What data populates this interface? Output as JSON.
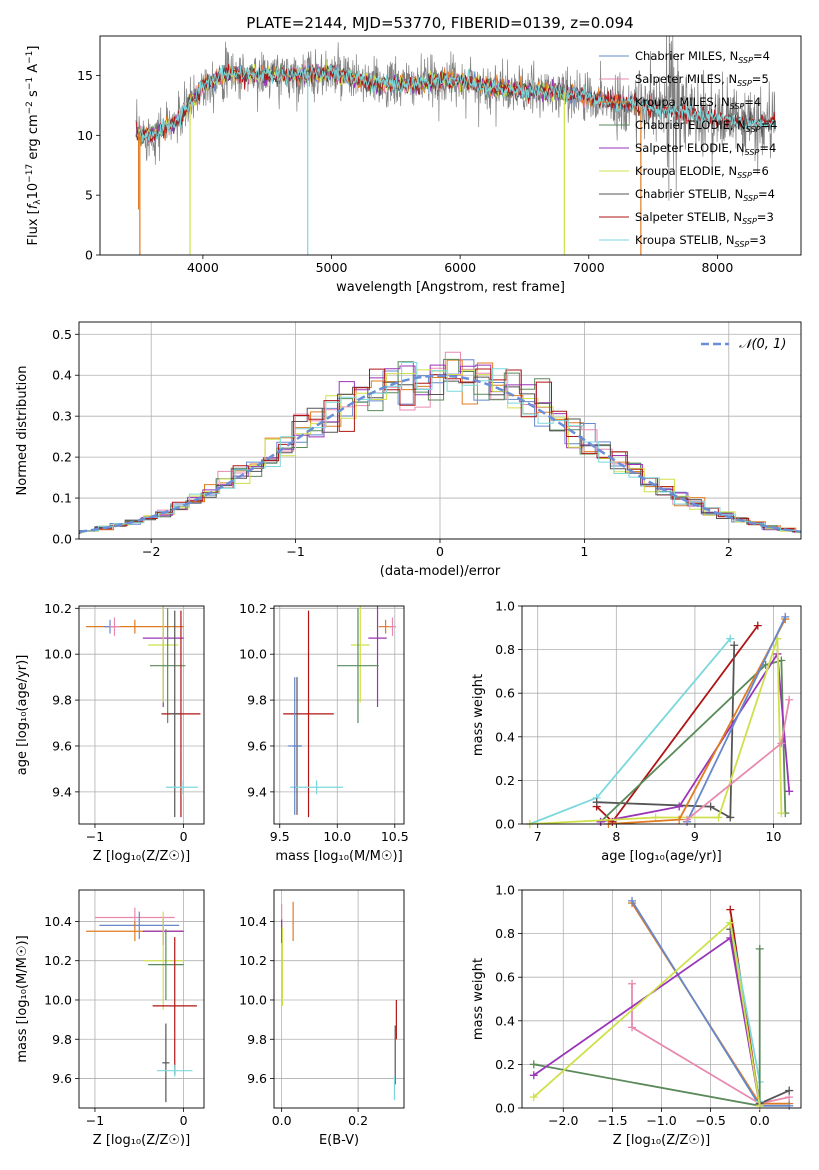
{
  "colors": {
    "chabrier_miles": "#6688cc",
    "salpeter_miles": "#e88ab0",
    "kroupa_miles": "#e07b22",
    "chabrier_elodie": "#5a8a5a",
    "salpeter_elodie": "#9a35b8",
    "kroupa_elodie": "#cfe04a",
    "chabrier_stelib": "#555555",
    "salpeter_stelib": "#b01414",
    "kroupa_stelib": "#7ad8dc",
    "data": "#808080",
    "grid": "#b0b0b0"
  },
  "chart_data": [
    {
      "id": "spectrum",
      "type": "line",
      "title": "PLATE=2144, MJD=53770, FIBERID=0139, z=0.094",
      "xlabel": "wavelength [Angstrom, rest frame]",
      "ylabel_parts": [
        "Flux [",
        "f",
        "λ",
        "10",
        "−17",
        " erg cm",
        "−2",
        " s",
        "−1",
        " A",
        "−1",
        "]"
      ],
      "xlim": [
        3200,
        8650
      ],
      "ylim": [
        0,
        18.3
      ],
      "xticks": [
        4000,
        5000,
        6000,
        7000,
        8000
      ],
      "yticks": [
        0,
        5,
        10,
        15
      ],
      "grid": false,
      "legend_position": "upper right",
      "series": [
        {
          "name": "Chabrier MILES",
          "nssp": "4",
          "key": "chabrier_miles"
        },
        {
          "name": "Salpeter MILES",
          "nssp": "5",
          "key": "salpeter_miles"
        },
        {
          "name": "Kroupa MILES",
          "nssp": "4",
          "key": "kroupa_miles"
        },
        {
          "name": "Chabrier ELODIE",
          "nssp": "4",
          "key": "chabrier_elodie"
        },
        {
          "name": "Salpeter ELODIE",
          "nssp": "4",
          "key": "salpeter_elodie"
        },
        {
          "name": "Kroupa ELODIE",
          "nssp": "6",
          "key": "kroupa_elodie"
        },
        {
          "name": "Chabrier STELIB",
          "nssp": "4",
          "key": "chabrier_stelib"
        },
        {
          "name": "Salpeter STELIB",
          "nssp": "3",
          "key": "salpeter_stelib"
        },
        {
          "name": "Kroupa STELIB",
          "nssp": "3",
          "key": "kroupa_stelib"
        }
      ],
      "continuum": [
        [
          3480,
          10.2
        ],
        [
          3600,
          10.0
        ],
        [
          3700,
          10.6
        ],
        [
          3800,
          11.2
        ],
        [
          3900,
          12.6
        ],
        [
          4000,
          14.2
        ],
        [
          4200,
          15.2
        ],
        [
          4500,
          15.0
        ],
        [
          4800,
          15.1
        ],
        [
          5000,
          15.2
        ],
        [
          5300,
          14.3
        ],
        [
          5600,
          14.2
        ],
        [
          5800,
          14.5
        ],
        [
          6000,
          14.6
        ],
        [
          6200,
          14.0
        ],
        [
          6500,
          13.7
        ],
        [
          6800,
          13.6
        ],
        [
          7000,
          13.2
        ],
        [
          7300,
          12.6
        ],
        [
          7500,
          12.3
        ],
        [
          7800,
          11.8
        ],
        [
          8000,
          11.4
        ],
        [
          8200,
          11.0
        ],
        [
          8450,
          11.0
        ]
      ]
    },
    {
      "id": "residuals",
      "type": "histogram",
      "xlabel": "(data-model)/error",
      "ylabel": "Normed distribution",
      "xlim": [
        -2.5,
        2.5
      ],
      "ylim": [
        0,
        0.53
      ],
      "xticks": [
        -2,
        -1,
        0,
        1,
        2
      ],
      "yticks": [
        0.0,
        0.1,
        0.2,
        0.3,
        0.4,
        0.5
      ],
      "grid": true,
      "legend": "𝒩(0, 1)",
      "legend_position": "upper right",
      "bin_width": 0.105
    },
    {
      "id": "age_vs_z",
      "type": "errorbar",
      "xlabel": "Z [log₁₀(Z/Z☉)]",
      "ylabel": "age  [log₁₀(age/yr)]",
      "xlim": [
        -1.18,
        0.23
      ],
      "ylim": [
        9.26,
        10.21
      ],
      "xticks": [
        -1,
        0
      ],
      "yticks": [
        9.4,
        9.6,
        9.8,
        10.0,
        10.2
      ],
      "grid": true,
      "points": [
        {
          "key": "kroupa_miles",
          "x": -0.55,
          "xerr": 0.55,
          "y": 10.12,
          "yerr": 0.03
        },
        {
          "key": "chabrier_miles",
          "x": -0.83,
          "xerr": 0.07,
          "y": 10.12,
          "yerr": 0.03
        },
        {
          "key": "salpeter_miles",
          "x": -0.78,
          "xerr": 0.06,
          "y": 10.12,
          "yerr": 0.04
        },
        {
          "key": "salpeter_elodie",
          "x": -0.23,
          "xerr": 0.23,
          "y": 10.07,
          "yerr": 0.3
        },
        {
          "key": "kroupa_elodie",
          "x": -0.23,
          "xerr": 0.17,
          "y": 10.04,
          "yerr": 0.25
        },
        {
          "key": "chabrier_elodie",
          "x": -0.18,
          "xerr": 0.2,
          "y": 9.95,
          "yerr": 0.25
        },
        {
          "key": "salpeter_stelib",
          "x": -0.03,
          "xerr": 0.22,
          "y": 9.74,
          "yerr": 0.45
        },
        {
          "key": "chabrier_stelib",
          "x": -0.1,
          "xerr": 0.05,
          "y": 9.74,
          "yerr": 0.45
        },
        {
          "key": "kroupa_stelib",
          "x": -0.02,
          "xerr": 0.18,
          "y": 9.42,
          "yerr": 0.03
        }
      ]
    },
    {
      "id": "age_vs_mass",
      "type": "errorbar",
      "xlabel": "mass [log₁₀(M/M☉)]",
      "xlim": [
        9.45,
        10.58
      ],
      "ylim": [
        9.26,
        10.21
      ],
      "xticks": [
        9.5,
        10.0,
        10.5
      ],
      "yticks": [
        9.4,
        9.6,
        9.8,
        10.0,
        10.2
      ],
      "grid": true,
      "points": [
        {
          "key": "kroupa_miles",
          "x": 10.42,
          "xerr": 0.06,
          "y": 10.12,
          "yerr": 0.03
        },
        {
          "key": "salpeter_miles",
          "x": 10.48,
          "xerr": 0.03,
          "y": 10.12,
          "yerr": 0.04
        },
        {
          "key": "salpeter_elodie",
          "x": 10.35,
          "xerr": 0.08,
          "y": 10.07,
          "yerr": 0.3
        },
        {
          "key": "kroupa_elodie",
          "x": 10.2,
          "xerr": 0.08,
          "y": 10.04,
          "yerr": 0.25
        },
        {
          "key": "chabrier_elodie",
          "x": 10.18,
          "xerr": 0.18,
          "y": 9.95,
          "yerr": 0.25
        },
        {
          "key": "salpeter_stelib",
          "x": 9.75,
          "xerr": 0.22,
          "y": 9.74,
          "yerr": 0.45
        },
        {
          "key": "chabrier_stelib",
          "x": 9.65,
          "xerr": 0.04,
          "y": 9.6,
          "yerr": 0.3
        },
        {
          "key": "kroupa_stelib",
          "x": 9.82,
          "xerr": 0.23,
          "y": 9.42,
          "yerr": 0.03
        },
        {
          "key": "chabrier_miles",
          "x": 9.63,
          "xerr": 0.06,
          "y": 9.6,
          "yerr": 0.3
        }
      ]
    },
    {
      "id": "weight_vs_age",
      "type": "line",
      "xlabel": "age  [log₁₀(age/yr)]",
      "ylabel": "mass weight",
      "xlim": [
        6.8,
        10.35
      ],
      "ylim": [
        0,
        1.0
      ],
      "xticks": [
        7,
        8,
        9,
        10
      ],
      "yticks": [
        0.0,
        0.2,
        0.4,
        0.6,
        0.8,
        1.0
      ],
      "grid": true,
      "series": [
        {
          "key": "salpeter_stelib",
          "x": [
            7.75,
            7.95,
            9.8
          ],
          "y": [
            0.08,
            0.01,
            0.91
          ]
        },
        {
          "key": "kroupa_stelib",
          "x": [
            6.9,
            7.75,
            9.45
          ],
          "y": [
            0.0,
            0.12,
            0.85
          ]
        },
        {
          "key": "chabrier_stelib",
          "x": [
            7.75,
            9.2,
            9.45,
            9.5
          ],
          "y": [
            0.1,
            0.08,
            0.03,
            0.82
          ]
        },
        {
          "key": "chabrier_elodie",
          "x": [
            7.8,
            9.9,
            10.1,
            10.15
          ],
          "y": [
            0.01,
            0.73,
            0.75,
            0.05
          ]
        },
        {
          "key": "salpeter_elodie",
          "x": [
            7.8,
            8.8,
            10.05,
            10.2
          ],
          "y": [
            0.01,
            0.08,
            0.78,
            0.15
          ]
        },
        {
          "key": "kroupa_elodie",
          "x": [
            6.9,
            8.5,
            9.3,
            10.05,
            10.1
          ],
          "y": [
            0.0,
            0.03,
            0.03,
            0.85,
            0.05
          ]
        },
        {
          "key": "kroupa_miles",
          "x": [
            7.9,
            8.8,
            10.15
          ],
          "y": [
            0.0,
            0.02,
            0.94
          ]
        },
        {
          "key": "chabrier_miles",
          "x": [
            8.9,
            10.15
          ],
          "y": [
            0.01,
            0.95
          ]
        },
        {
          "key": "salpeter_miles",
          "x": [
            8.9,
            10.1,
            10.2
          ],
          "y": [
            0.02,
            0.37,
            0.57
          ]
        }
      ]
    },
    {
      "id": "mass_vs_z",
      "type": "errorbar",
      "xlabel": "Z [log₁₀(Z/Z☉)]",
      "ylabel": "mass [log₁₀(M/M☉)]",
      "xlim": [
        -1.18,
        0.23
      ],
      "ylim": [
        9.45,
        10.56
      ],
      "xticks": [
        -1,
        0
      ],
      "yticks": [
        9.6,
        9.8,
        10.0,
        10.2,
        10.4
      ],
      "grid": true,
      "points": [
        {
          "key": "salpeter_miles",
          "x": -0.55,
          "xerr": 0.45,
          "y": 10.42,
          "yerr": 0.05
        },
        {
          "key": "chabrier_miles",
          "x": -0.5,
          "xerr": 0.45,
          "y": 10.38,
          "yerr": 0.07
        },
        {
          "key": "kroupa_miles",
          "x": -0.55,
          "xerr": 0.55,
          "y": 10.35,
          "yerr": 0.05
        },
        {
          "key": "salpeter_elodie",
          "x": -0.23,
          "xerr": 0.23,
          "y": 10.35,
          "yerr": 0.07
        },
        {
          "key": "kroupa_elodie",
          "x": -0.23,
          "xerr": 0.23,
          "y": 10.2,
          "yerr": 0.25
        },
        {
          "key": "chabrier_elodie",
          "x": -0.2,
          "xerr": 0.2,
          "y": 10.18,
          "yerr": 0.18
        },
        {
          "key": "salpeter_stelib",
          "x": -0.1,
          "xerr": 0.25,
          "y": 9.97,
          "yerr": 0.35
        },
        {
          "key": "chabrier_stelib",
          "x": -0.2,
          "xerr": 0.04,
          "y": 9.68,
          "yerr": 0.2
        },
        {
          "key": "kroupa_stelib",
          "x": -0.1,
          "xerr": 0.2,
          "y": 9.64,
          "yerr": 0.03
        }
      ]
    },
    {
      "id": "mass_vs_ebv",
      "type": "errorbar",
      "xlabel": "E(B-V)",
      "xlim": [
        -0.02,
        0.32
      ],
      "ylim": [
        9.45,
        10.56
      ],
      "xticks": [
        0.0,
        0.2
      ],
      "yticks": [
        9.6,
        9.8,
        10.0,
        10.2,
        10.4
      ],
      "grid": true,
      "points": [
        {
          "key": "salpeter_miles",
          "x": 0.0,
          "xerr": 0.0,
          "y": 10.42,
          "yerr": 0.07
        },
        {
          "key": "salpeter_elodie",
          "x": 0.0,
          "xerr": 0.0,
          "y": 10.35,
          "yerr": 0.06
        },
        {
          "key": "kroupa_elodie",
          "x": 0.002,
          "xerr": 0.0,
          "y": 10.17,
          "yerr": 0.2
        },
        {
          "key": "kroupa_miles",
          "x": 0.03,
          "xerr": 0.0,
          "y": 10.4,
          "yerr": 0.1
        },
        {
          "key": "salpeter_stelib",
          "x": 0.3,
          "xerr": 0.0,
          "y": 9.9,
          "yerr": 0.1
        },
        {
          "key": "chabrier_stelib",
          "x": 0.297,
          "xerr": 0.0,
          "y": 9.72,
          "yerr": 0.15
        },
        {
          "key": "kroupa_stelib",
          "x": 0.295,
          "xerr": 0.0,
          "y": 9.55,
          "yerr": 0.06
        }
      ]
    },
    {
      "id": "weight_vs_z",
      "type": "line",
      "xlabel": "Z [log₁₀(Z/Z☉)]",
      "ylabel": "mass weight",
      "xlim": [
        -2.42,
        0.42
      ],
      "ylim": [
        0,
        1.0
      ],
      "xticks": [
        -2.0,
        -1.5,
        -1.0,
        -0.5,
        0.0
      ],
      "yticks": [
        0.0,
        0.2,
        0.4,
        0.6,
        0.8,
        1.0
      ],
      "grid": true,
      "series": [
        {
          "key": "kroupa_miles",
          "x": [
            -1.3,
            0.0,
            0.3
          ],
          "y": [
            0.94,
            0.02,
            0.02
          ]
        },
        {
          "key": "chabrier_miles",
          "x": [
            -1.3,
            0.0,
            0.3
          ],
          "y": [
            0.95,
            0.01,
            0.01
          ]
        },
        {
          "key": "salpeter_miles",
          "x": [
            -1.3,
            -1.3,
            0.0,
            0.3
          ],
          "y": [
            0.57,
            0.37,
            0.02,
            0.05
          ]
        },
        {
          "key": "salpeter_stelib",
          "x": [
            -0.3,
            0.0
          ],
          "y": [
            0.91,
            0.01
          ]
        },
        {
          "key": "chabrier_stelib",
          "x": [
            -0.3,
            0.0,
            0.3
          ],
          "y": [
            0.82,
            0.02,
            0.08
          ]
        },
        {
          "key": "kroupa_stelib",
          "x": [
            -0.3,
            0.0,
            0.0
          ],
          "y": [
            0.85,
            0.12,
            0.03
          ]
        },
        {
          "key": "chabrier_elodie",
          "x": [
            -2.3,
            0.0,
            0.0
          ],
          "y": [
            0.2,
            0.01,
            0.73
          ]
        },
        {
          "key": "salpeter_elodie",
          "x": [
            -2.3,
            -0.3,
            0.0
          ],
          "y": [
            0.15,
            0.78,
            0.01
          ]
        },
        {
          "key": "kroupa_elodie",
          "x": [
            -2.3,
            -0.3,
            0.0
          ],
          "y": [
            0.05,
            0.85,
            0.01
          ]
        }
      ]
    }
  ]
}
